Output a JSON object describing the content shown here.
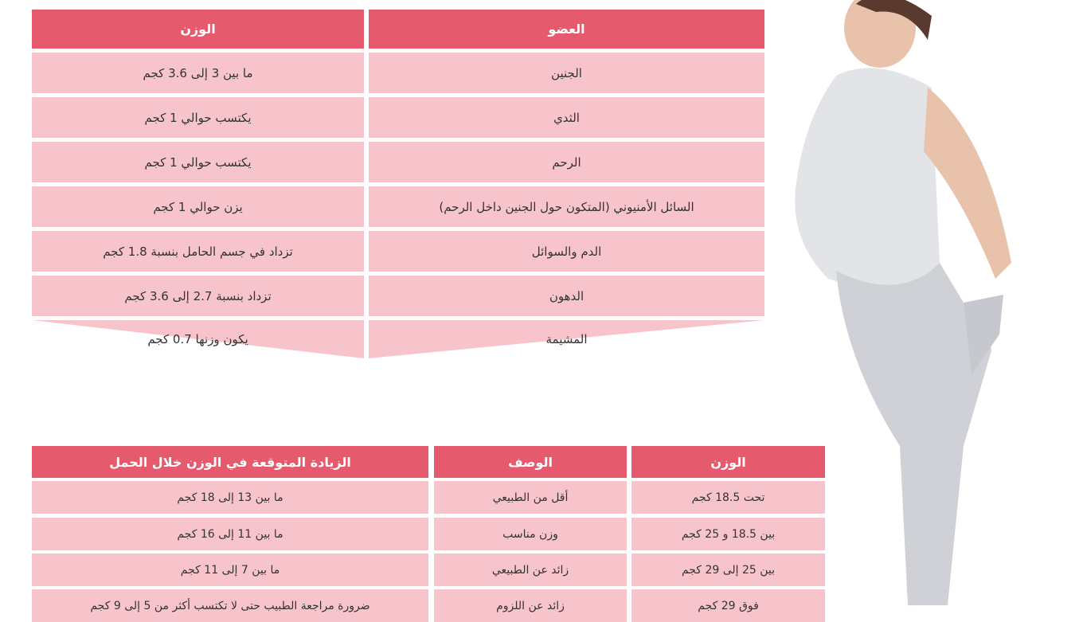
{
  "colors": {
    "header": "#e65a6d",
    "row": "#f8c4cc",
    "text": "#333333"
  },
  "table1": {
    "headers": {
      "organ": "العضو",
      "weight": "الوزن"
    },
    "rows": [
      {
        "organ": "الجنين",
        "weight": "ما بين 3 إلى 3.6 كجم"
      },
      {
        "organ": "الثدي",
        "weight": "يكتسب حوالي 1 كجم"
      },
      {
        "organ": "الرحم",
        "weight": "يكتسب حوالي 1 كجم"
      },
      {
        "organ": "السائل الأمنيوني (المتكون حول الجنين داخل الرحم)",
        "weight": "يزن حوالي 1 كجم"
      },
      {
        "organ": "الدم والسوائل",
        "weight": "تزداد في جسم الحامل بنسبة 1.8 كجم"
      },
      {
        "organ": "الدهون",
        "weight": "تزداد بنسبة 2.7 إلى 3.6 كجم"
      },
      {
        "organ": "المشيمة",
        "weight": "يكون وزنها 0.7 كجم"
      }
    ]
  },
  "table2": {
    "headers": {
      "weight": "الوزن",
      "description": "الوصف",
      "gain": "الزيادة المتوقعة في الوزن خلال الحمل"
    },
    "rows": [
      {
        "weight": "تحت 18.5 كجم",
        "description": "أقل من الطبيعي",
        "gain": "ما بين 13 إلى 18 كجم"
      },
      {
        "weight": "بين 18.5 و 25 كجم",
        "description": "وزن مناسب",
        "gain": "ما بين 11 إلى 16 كجم"
      },
      {
        "weight": "بين 25 إلى 29 كجم",
        "description": "زائد عن الطبيعي",
        "gain": "ما بين 7 إلى 11 كجم"
      },
      {
        "weight": "فوق 29 كجم",
        "description": "زائد عن اللزوم",
        "gain": "ضرورة مراجعة الطبيب حتى لا تكتسب أكثر من 5 إلى 9 كجم"
      }
    ]
  },
  "image": {
    "subject": "pregnant woman stretching"
  }
}
